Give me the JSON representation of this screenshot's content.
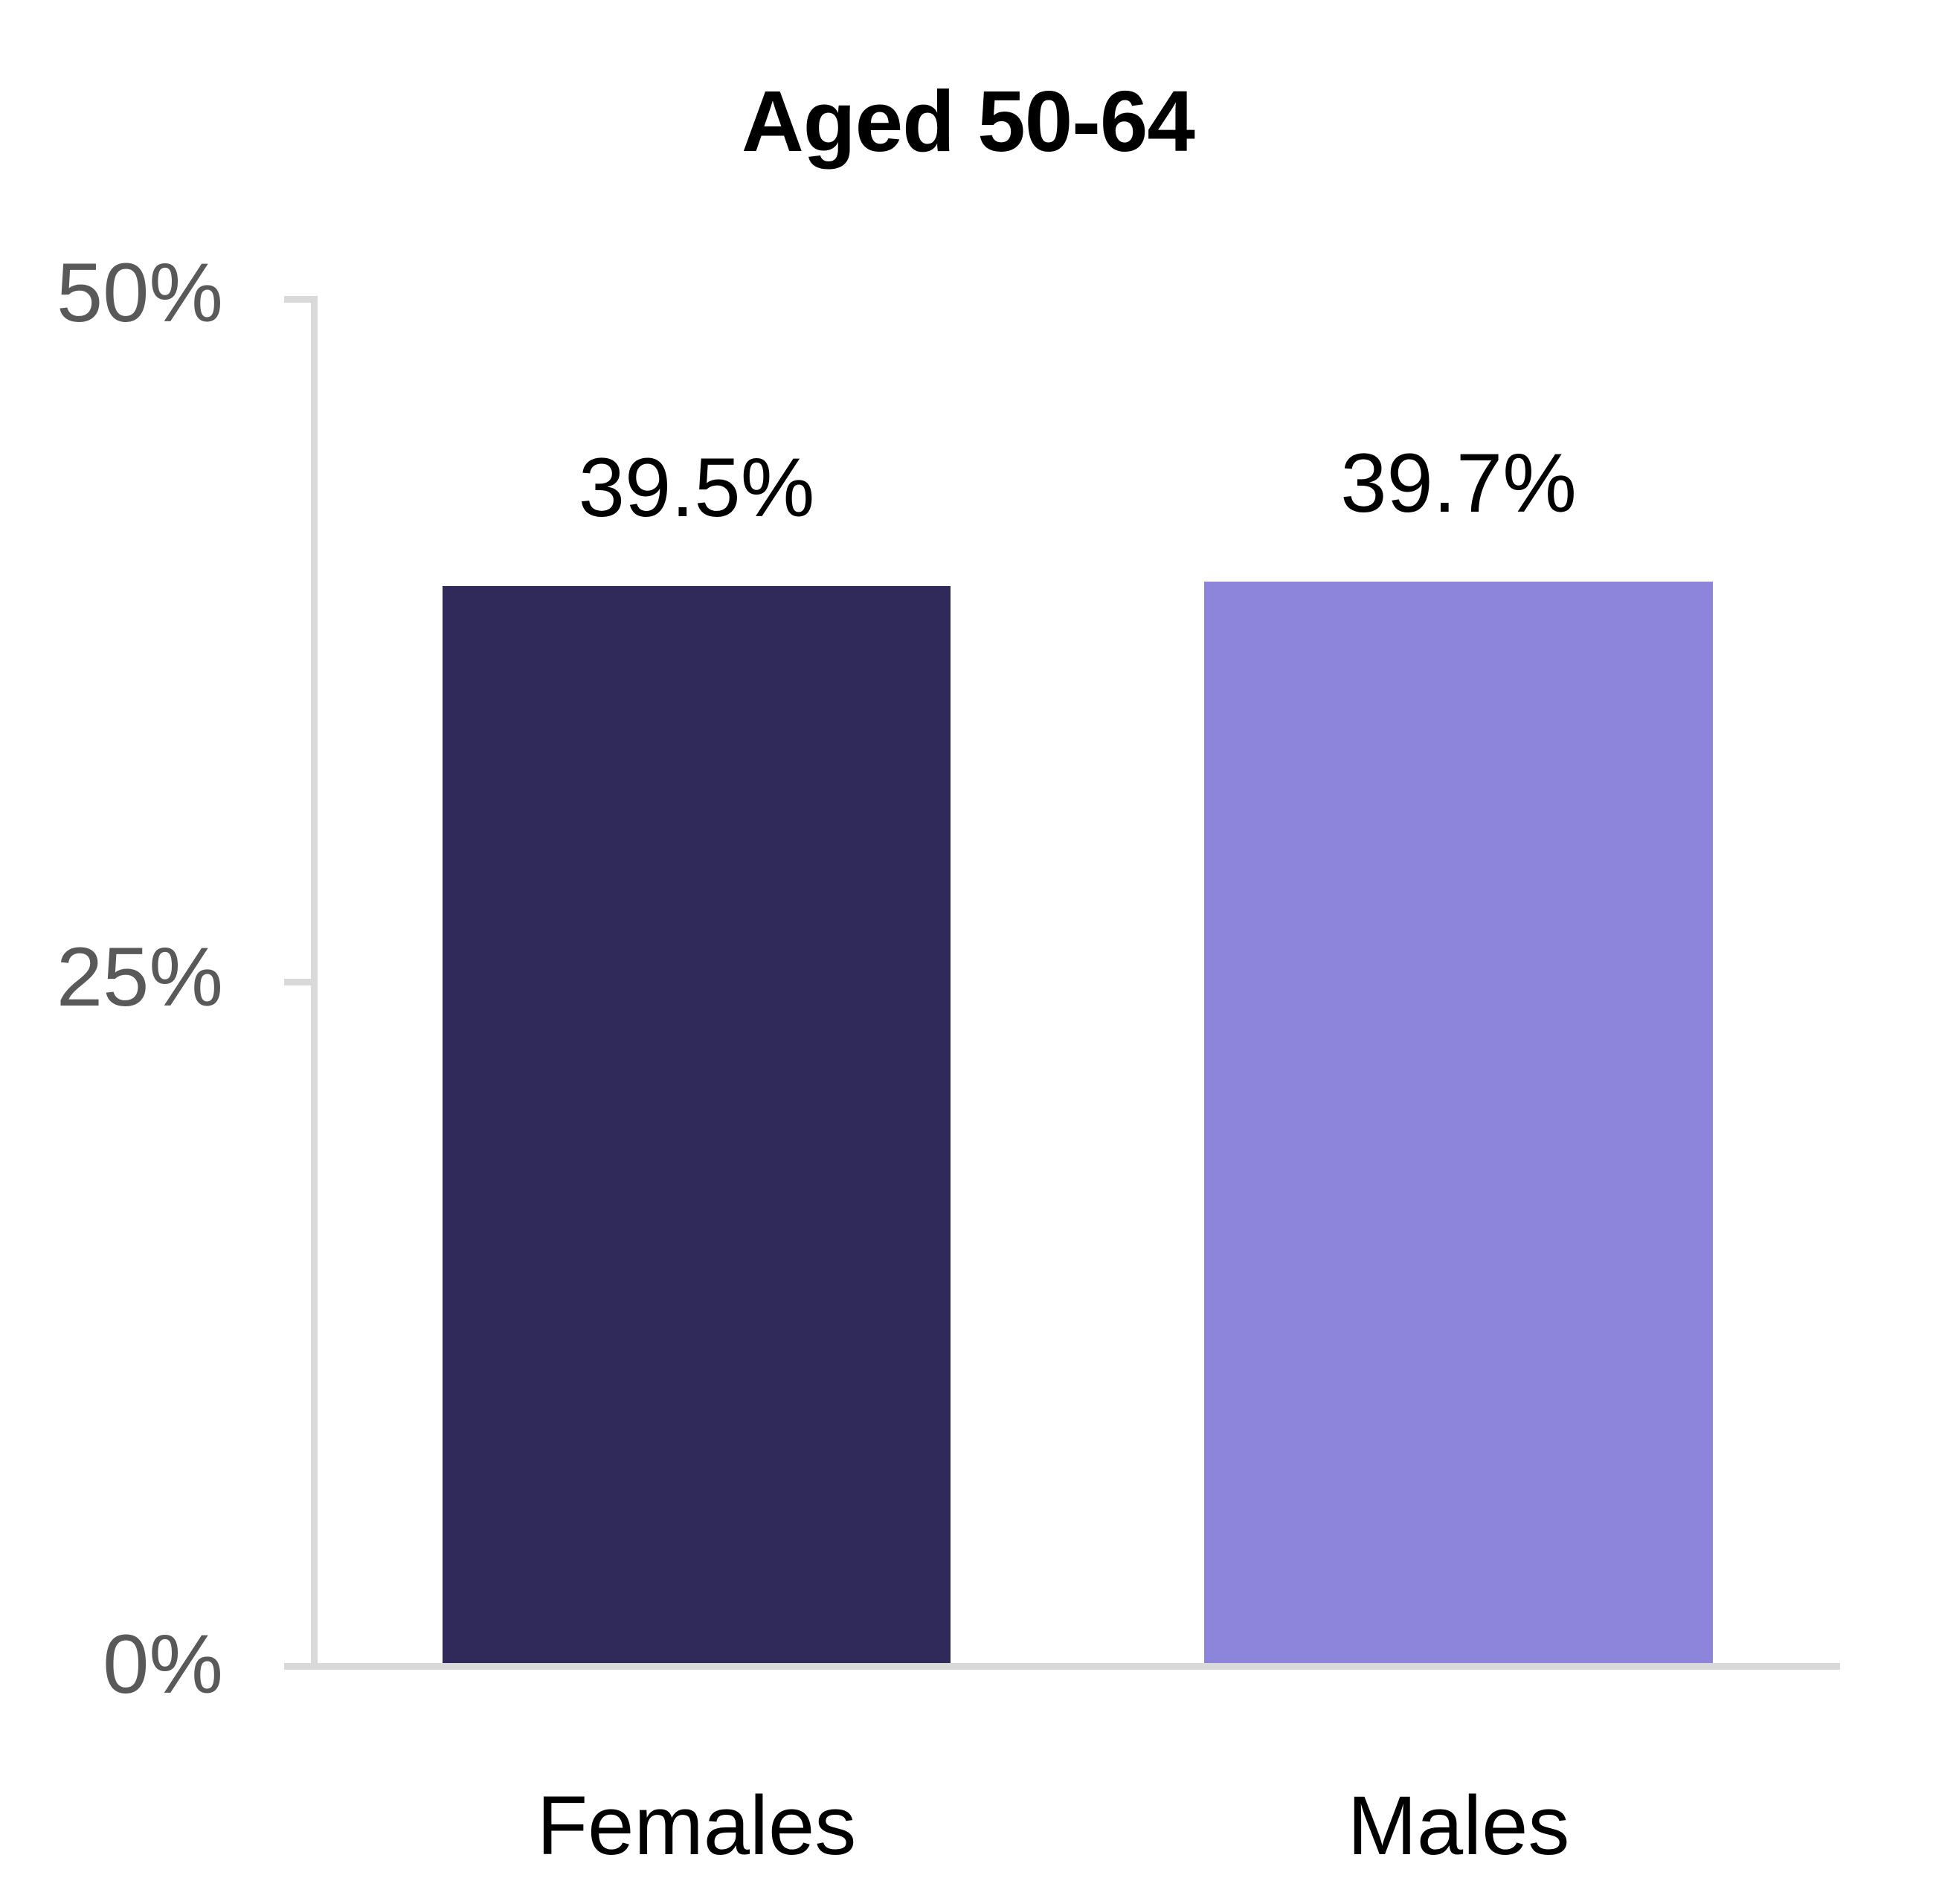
{
  "chart_data": {
    "type": "bar",
    "title": "Aged 50-64",
    "categories": [
      "Females",
      "Males"
    ],
    "values": [
      39.5,
      39.7
    ],
    "data_labels": [
      "39.5%",
      "39.7%"
    ],
    "xlabel": "",
    "ylabel": "",
    "ylim": [
      0,
      50
    ],
    "ytick_labels": [
      "50%",
      "25%",
      "0%"
    ],
    "ytick_values": [
      50,
      25,
      0
    ],
    "grid": false,
    "legend_position": "none",
    "colors": {
      "bar_females": "#2F2A59",
      "bar_males": "#8D84DC",
      "axis_line": "#D9D9D9",
      "ytick_text": "#595959",
      "title_text": "#000000",
      "data_label_text": "#000000",
      "category_text": "#000000"
    }
  }
}
